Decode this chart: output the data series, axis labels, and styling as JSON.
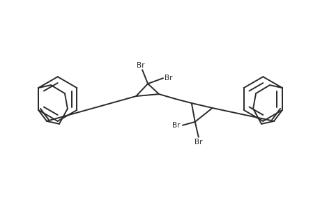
{
  "bg_color": "#ffffff",
  "line_color": "#2a2a2a",
  "line_width": 1.4,
  "figsize": [
    4.6,
    3.0
  ],
  "dpi": 100,
  "xlim": [
    0,
    46
  ],
  "ylim": [
    0,
    30
  ]
}
